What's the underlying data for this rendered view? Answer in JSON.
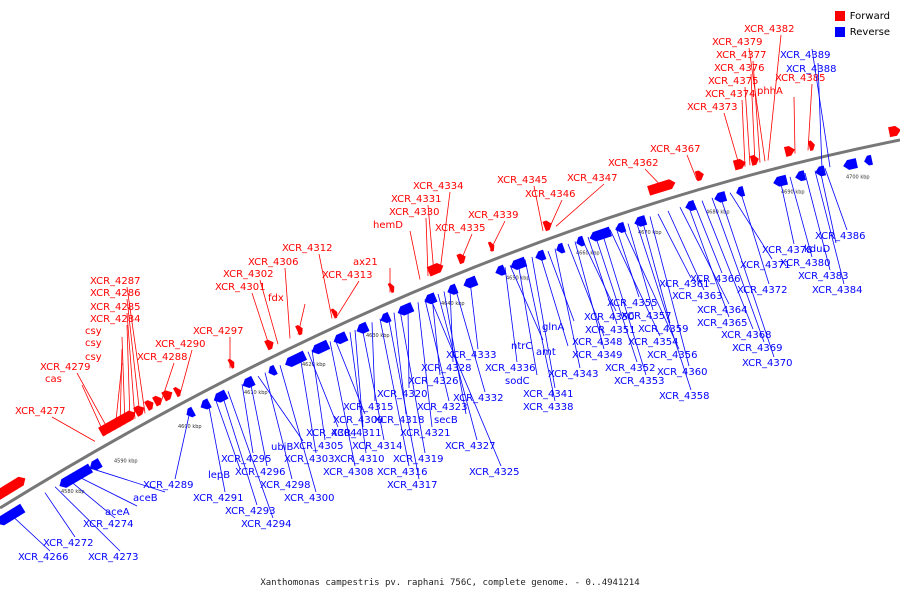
{
  "legend": {
    "forward_label": "Forward",
    "reverse_label": "Reverse",
    "forward_color": "#ff0000",
    "reverse_color": "#0000ff"
  },
  "caption": "Xanthomonas campestris pv. raphani 756C, complete genome. - 0..4941214",
  "ticks": [
    "4580 kbp",
    "4590 kbp",
    "4600 kbp",
    "4610 kbp",
    "4620 kbp",
    "4630 kbp",
    "4640 kbp",
    "4650 kbp",
    "4660 kbp",
    "4670 kbp",
    "4680 kbp",
    "4690 kbp",
    "4700 kbp"
  ],
  "forward_genes": [
    "XCR_4277",
    "cas",
    "XCR_4279",
    "csy",
    "csy",
    "csy",
    "XCR_4284",
    "XCR_4285",
    "XCR_4286",
    "XCR_4287",
    "XCR_4288",
    "XCR_4290",
    "XCR_4297",
    "XCR_4301",
    "XCR_4302",
    "XCR_4306",
    "fdx",
    "XCR_4312",
    "XCR_4313",
    "ax21",
    "hemD",
    "XCR_4330",
    "XCR_4331",
    "XCR_4334",
    "XCR_4335",
    "XCR_4339",
    "XCR_4345",
    "XCR_4346",
    "XCR_4347",
    "XCR_4362",
    "XCR_4367",
    "XCR_4373",
    "XCR_4374",
    "XCR_4375",
    "XCR_4376",
    "XCR_4377",
    "XCR_4379",
    "XCR_4382",
    "phhA",
    "XCR_4385"
  ],
  "reverse_genes": [
    "XCR_4266",
    "XCR_4272",
    "XCR_4273",
    "XCR_4274",
    "aceA",
    "aceB",
    "XCR_4289",
    "XCR_4291",
    "lepB",
    "XCR_4293",
    "XCR_4294",
    "XCR_4295",
    "XCR_4296",
    "ubiB",
    "XCR_4298",
    "XCR_4300",
    "XCR_4303",
    "XCR_4304",
    "XCR_4305",
    "XCR_4308",
    "XCR_4309",
    "XCR_4310",
    "XCR_4311",
    "XCR_4314",
    "XCR_4315",
    "XCR_4316",
    "XCR_4317",
    "XCR_4318",
    "XCR_4319",
    "XCR_4320",
    "XCR_4321",
    "XCR_4323",
    "XCR_4325",
    "XCR_4326",
    "XCR_4327",
    "secB",
    "XCR_4328",
    "XCR_4332",
    "XCR_4333",
    "XCR_4336",
    "ntrC",
    "sodC",
    "XCR_4338",
    "XCR_4341",
    "amt",
    "glnA",
    "XCR_4343",
    "XCR_4348",
    "XCR_4349",
    "XCR_4350",
    "XCR_4351",
    "XCR_4352",
    "XCR_4353",
    "XCR_4354",
    "XCR_4355",
    "XCR_4356",
    "XCR_4357",
    "XCR_4358",
    "XCR_4359",
    "XCR_4360",
    "XCR_4361",
    "XCR_4363",
    "XCR_4364",
    "XCR_4365",
    "XCR_4366",
    "XCR_4368",
    "XCR_4369",
    "XCR_4370",
    "XCR_4371",
    "XCR_4372",
    "XCR_4378",
    "XCR_4380",
    "XCR_4383",
    "XCR_4384",
    "kduD",
    "XCR_4386",
    "XCR_4388",
    "XCR_4389"
  ]
}
